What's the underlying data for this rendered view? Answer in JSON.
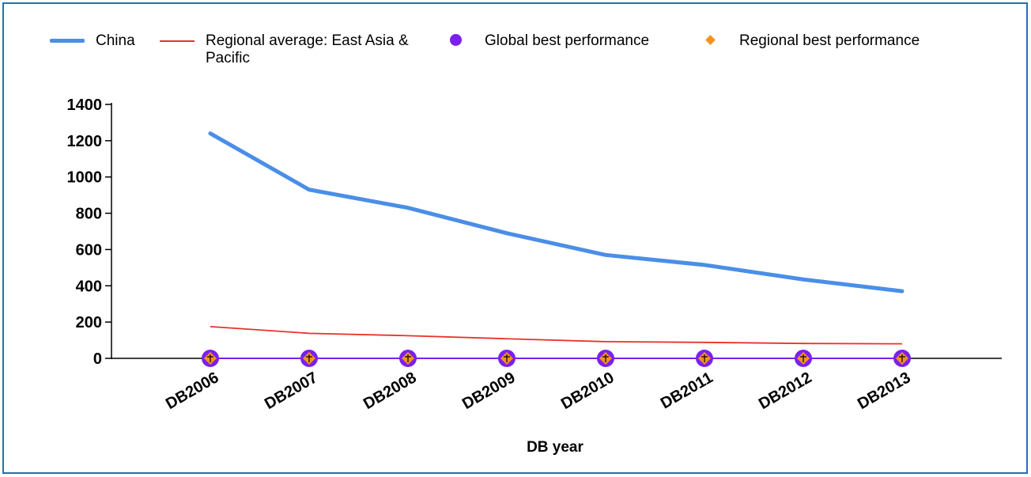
{
  "chart_data": {
    "type": "line",
    "categories": [
      "DB2006",
      "DB2007",
      "DB2008",
      "DB2009",
      "DB2010",
      "DB2011",
      "DB2012",
      "DB2013"
    ],
    "series": [
      {
        "name": "China",
        "color": "#4a8ee8",
        "style": "thick-line",
        "values": [
          1240,
          930,
          830,
          690,
          570,
          515,
          435,
          370
        ]
      },
      {
        "name": "Regional average: East Asia & Pacific",
        "color": "#e8332b",
        "style": "thin-line",
        "values": [
          175,
          138,
          125,
          108,
          92,
          88,
          82,
          80
        ]
      },
      {
        "name": "Global best performance",
        "color": "#7a1ff0",
        "style": "circle-marker",
        "values": [
          0,
          0,
          0,
          0,
          0,
          0,
          0,
          0
        ]
      },
      {
        "name": "Regional best performance",
        "color": "#f5921e",
        "style": "diamond-marker",
        "values": [
          0,
          0,
          0,
          0,
          0,
          0,
          0,
          0
        ]
      }
    ],
    "xlabel": "DB year",
    "ylabel": "",
    "ylim": [
      0,
      1400
    ],
    "yticks": [
      0,
      200,
      400,
      600,
      800,
      1000,
      1200,
      1400
    ],
    "grid": false,
    "legend_position": "top"
  }
}
